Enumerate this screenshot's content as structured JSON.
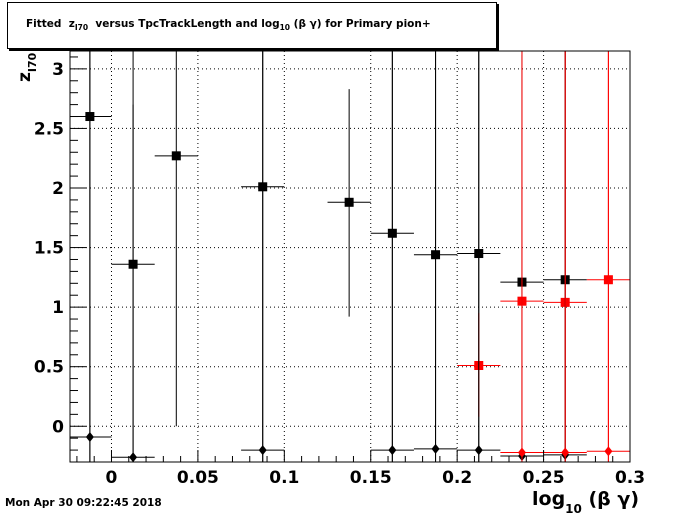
{
  "title": {
    "prefix": "Fitted  z",
    "prefix_sub": "I70",
    "suffix": "  versus TpcTrackLength and log",
    "suffix_sub": "10",
    "tail": " (β γ) for Primary pion+"
  },
  "timestamp": "Mon Apr 30 09:22:45 2018",
  "chart_data": {
    "type": "scatter",
    "title": "Fitted z_I70 versus TpcTrackLength and log_10 (β γ) for Primary pion+",
    "xlabel": "log_10 (β γ)",
    "xlabel_main": "log",
    "xlabel_sub": "10",
    "xlabel_tail": " (β γ)",
    "ylabel": "z_I70",
    "ylabel_main": "z",
    "ylabel_sub": "I70",
    "xlim": [
      -0.024,
      0.3
    ],
    "ylim": [
      -0.3,
      3.15
    ],
    "grid": true,
    "x_ticks": [
      0,
      0.05,
      0.1,
      0.15,
      0.2,
      0.25,
      0.3
    ],
    "x_tick_labels": [
      "0",
      "0.05",
      "0.1",
      "0.15",
      "0.2",
      "0.25",
      "0.3"
    ],
    "y_ticks": [
      0,
      0.5,
      1,
      1.5,
      2,
      2.5,
      3
    ],
    "y_tick_labels": [
      "0",
      "0.5",
      "1",
      "1.5",
      "2",
      "2.5",
      "3"
    ],
    "series": [
      {
        "color": "#000000",
        "marker": "square",
        "points": [
          {
            "x": -0.0125,
            "y": 2.6,
            "xerr": 0.0125,
            "ylo": null,
            "yhi": null
          },
          {
            "x": 0.0125,
            "y": 1.36,
            "xerr": 0.0125,
            "ylo": null,
            "yhi": 2.7
          },
          {
            "x": 0.0375,
            "y": 2.27,
            "xerr": 0.0125,
            "ylo": 0.0,
            "yhi": null
          },
          {
            "x": 0.0875,
            "y": 2.01,
            "xerr": 0.0125,
            "ylo": null,
            "yhi": null
          },
          {
            "x": 0.1375,
            "y": 1.88,
            "xerr": 0.0125,
            "ylo": 0.92,
            "yhi": 2.83
          },
          {
            "x": 0.1625,
            "y": 1.62,
            "xerr": 0.0125,
            "ylo": null,
            "yhi": null
          },
          {
            "x": 0.1875,
            "y": 1.44,
            "xerr": 0.0125,
            "ylo": null,
            "yhi": null
          },
          {
            "x": 0.2125,
            "y": 1.45,
            "xerr": 0.0125,
            "ylo": null,
            "yhi": null
          },
          {
            "x": 0.2375,
            "y": 1.21,
            "xerr": 0.0125,
            "ylo": null,
            "yhi": 3.12
          },
          {
            "x": 0.2625,
            "y": 1.23,
            "xerr": 0.0125,
            "ylo": null,
            "yhi": null
          }
        ]
      },
      {
        "color": "#ff0000",
        "marker": "square",
        "points": [
          {
            "x": 0.2125,
            "y": 0.51,
            "xerr": 0.0125,
            "ylo": 0.08,
            "yhi": 0.95
          },
          {
            "x": 0.2375,
            "y": 1.05,
            "xerr": 0.0125,
            "ylo": null,
            "yhi": 2.5
          },
          {
            "x": 0.2625,
            "y": 1.04,
            "xerr": 0.0125,
            "ylo": null,
            "yhi": null
          },
          {
            "x": 0.2875,
            "y": 1.23,
            "xerr": 0.0125,
            "ylo": null,
            "yhi": null
          }
        ]
      },
      {
        "color": "#000000",
        "marker": "diamond",
        "points": [
          {
            "x": -0.0125,
            "y": -0.09,
            "xerr": 0.0125,
            "ylo": null,
            "yhi": null
          },
          {
            "x": 0.0125,
            "y": -0.26,
            "xerr": 0.0125,
            "ylo": null,
            "yhi": null
          },
          {
            "x": 0.0875,
            "y": -0.2,
            "xerr": 0.0125,
            "ylo": null,
            "yhi": null
          },
          {
            "x": 0.1625,
            "y": -0.2,
            "xerr": 0.0125,
            "ylo": null,
            "yhi": null
          },
          {
            "x": 0.1875,
            "y": -0.19,
            "xerr": 0.0125,
            "ylo": null,
            "yhi": null
          },
          {
            "x": 0.2125,
            "y": -0.2,
            "xerr": 0.0125,
            "ylo": null,
            "yhi": null
          },
          {
            "x": 0.2375,
            "y": -0.25,
            "xerr": 0.0125,
            "ylo": null,
            "yhi": null
          },
          {
            "x": 0.2625,
            "y": -0.24,
            "xerr": 0.0125,
            "ylo": null,
            "yhi": null
          }
        ]
      },
      {
        "color": "#ff0000",
        "marker": "diamond",
        "points": [
          {
            "x": 0.2375,
            "y": -0.22,
            "xerr": 0.0125,
            "ylo": null,
            "yhi": null
          },
          {
            "x": 0.2625,
            "y": -0.22,
            "xerr": 0.0125,
            "ylo": null,
            "yhi": null
          },
          {
            "x": 0.2875,
            "y": -0.21,
            "xerr": 0.0125,
            "ylo": null,
            "yhi": null
          }
        ]
      }
    ]
  }
}
